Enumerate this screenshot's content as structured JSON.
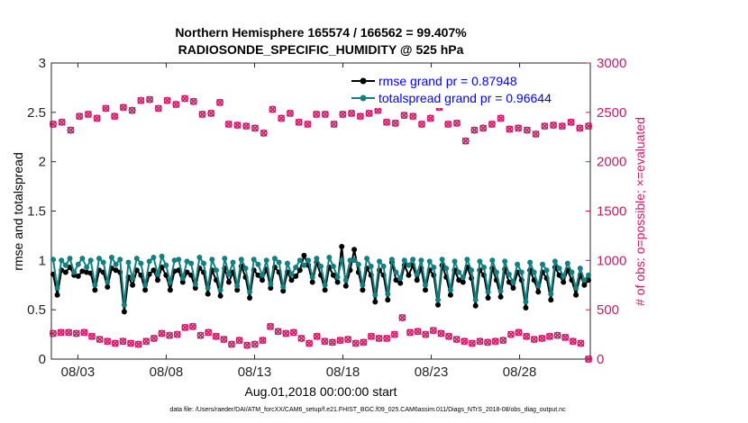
{
  "chart_data": {
    "type": "line",
    "title_line1": "Northern Hemisphere 165574 / 166562 = 99.407%",
    "title_line2": "RADIOSONDE_SPECIFIC_HUMIDITY @ 525 hPa",
    "xlabel": "Aug.01,2018 00:00:00 start",
    "ylabel_left": "rmse and totalspread",
    "ylabel_right": "# of obs: o=possible; ×=evaluated",
    "ylim_left": [
      0,
      3
    ],
    "ylim_right": [
      0,
      3000
    ],
    "xlim_days": [
      1.5,
      32.0
    ],
    "x_ticks": [
      {
        "day": 3,
        "label": "08/03"
      },
      {
        "day": 8,
        "label": "08/08"
      },
      {
        "day": 13,
        "label": "08/13"
      },
      {
        "day": 18,
        "label": "08/18"
      },
      {
        "day": 23,
        "label": "08/23"
      },
      {
        "day": 28,
        "label": "08/28"
      }
    ],
    "y_ticks_left": [
      "0",
      "0.5",
      "1",
      "1.5",
      "2",
      "2.5",
      "3"
    ],
    "y_ticks_right": [
      "0",
      "500",
      "1000",
      "1500",
      "2000",
      "2500",
      "3000"
    ],
    "legend": [
      {
        "name": "rmse grand pr = 0.87948",
        "color": "#000000"
      },
      {
        "name": "totalspread grand pr = 0.96644",
        "color": "#128080"
      }
    ],
    "series": [
      {
        "name": "rmse",
        "axis": "left",
        "color": "#000000",
        "values": [
          0.86,
          0.65,
          0.9,
          0.88,
          0.93,
          0.85,
          0.84,
          0.89,
          0.88,
          0.87,
          0.7,
          0.9,
          0.88,
          0.73,
          0.92,
          0.9,
          0.88,
          0.48,
          0.83,
          0.75,
          0.9,
          0.85,
          0.7,
          0.86,
          0.9,
          0.8,
          0.93,
          0.85,
          0.7,
          0.89,
          0.9,
          0.78,
          0.88,
          0.85,
          0.72,
          0.92,
          0.88,
          0.66,
          0.9,
          0.8,
          0.64,
          0.92,
          0.78,
          0.88,
          0.7,
          0.94,
          0.83,
          0.62,
          0.9,
          0.85,
          0.8,
          0.91,
          0.72,
          0.93,
          0.88,
          0.69,
          0.88,
          0.8,
          0.84,
          0.9,
          1.05,
          0.95,
          0.78,
          0.98,
          0.85,
          0.7,
          0.93,
          0.85,
          0.78,
          1.14,
          0.74,
          0.9,
          1.11,
          0.88,
          0.7,
          0.92,
          0.85,
          0.58,
          0.9,
          0.85,
          0.6,
          0.98,
          0.8,
          0.77,
          0.95,
          0.85,
          0.95,
          0.8,
          0.92,
          0.7,
          0.9,
          0.85,
          0.55,
          0.95,
          0.83,
          0.65,
          0.9,
          0.8,
          0.78,
          0.93,
          0.82,
          0.54,
          0.9,
          0.85,
          0.62,
          0.92,
          0.8,
          0.63,
          0.91,
          0.78,
          0.72,
          0.88,
          0.8,
          0.52,
          0.9,
          0.8,
          0.68,
          0.88,
          0.82,
          0.6,
          0.93,
          0.85,
          0.78,
          0.9,
          0.8,
          0.65,
          0.85,
          0.75,
          0.8
        ]
      },
      {
        "name": "totalspread",
        "axis": "left",
        "color": "#128080",
        "values": [
          1.01,
          0.72,
          1.0,
          0.95,
          1.02,
          0.88,
          0.96,
          1.02,
          0.93,
          1.0,
          0.75,
          1.02,
          0.98,
          0.78,
          1.03,
          0.96,
          1.01,
          0.55,
          0.98,
          0.82,
          1.02,
          0.97,
          0.75,
          0.99,
          1.03,
          0.86,
          1.04,
          0.95,
          0.78,
          1.0,
          1.01,
          0.82,
          0.99,
          0.97,
          0.76,
          1.03,
          0.97,
          0.72,
          1.01,
          0.9,
          0.7,
          1.02,
          0.86,
          0.98,
          0.74,
          1.01,
          0.92,
          0.68,
          1.01,
          0.96,
          0.85,
          1.0,
          0.76,
          1.02,
          0.98,
          0.73,
          0.97,
          0.86,
          0.93,
          1.0,
          0.95,
          1.0,
          0.83,
          1.02,
          0.94,
          0.75,
          1.03,
          0.94,
          0.83,
          1.0,
          0.8,
          1.0,
          1.0,
          0.96,
          0.75,
          1.02,
          0.94,
          0.65,
          0.99,
          0.94,
          0.66,
          1.01,
          0.88,
          0.82,
          1.0,
          0.95,
          1.01,
          0.86,
          1.0,
          0.75,
          0.99,
          0.93,
          0.6,
          1.01,
          0.92,
          0.7,
          0.99,
          0.88,
          0.83,
          1.01,
          0.9,
          0.6,
          0.99,
          0.93,
          0.68,
          1.0,
          0.88,
          0.69,
          0.99,
          0.86,
          0.78,
          0.96,
          0.88,
          0.58,
          0.98,
          0.88,
          0.74,
          0.96,
          0.9,
          0.66,
          0.99,
          0.92,
          0.84,
          0.97,
          0.88,
          0.72,
          0.92,
          0.8,
          0.85
        ]
      },
      {
        "name": "obs possible",
        "axis": "right",
        "color": "#cc1a66",
        "values": [
          2380,
          2400,
          2320,
          2460,
          2480,
          2440,
          2540,
          2460,
          2550,
          2520,
          2620,
          2630,
          2540,
          2620,
          2580,
          2640,
          2610,
          2480,
          2490,
          2600,
          2380,
          2370,
          2360,
          2340,
          2290,
          2530,
          2440,
          2490,
          2400,
          2380,
          2480,
          2480,
          2380,
          2480,
          2490,
          2460,
          2490,
          2520,
          2400,
          2390,
          2470,
          2460,
          2380,
          2440,
          2550,
          2380,
          2390,
          2210,
          2320,
          2340,
          2380,
          2440,
          2330,
          2340,
          2320,
          2280,
          2360,
          2370,
          2360,
          2400,
          2340,
          2360
        ]
      },
      {
        "name": "obs evaluated",
        "axis": "right",
        "color": "#cc1a66",
        "values": [
          260,
          270,
          270,
          260,
          270,
          230,
          200,
          180,
          160,
          180,
          160,
          150,
          180,
          210,
          260,
          240,
          250,
          320,
          330,
          240,
          270,
          230,
          200,
          150,
          190,
          140,
          150,
          190,
          330,
          280,
          260,
          270,
          210,
          160,
          230,
          180,
          170,
          190,
          200,
          160,
          170,
          230,
          210,
          210,
          250,
          420,
          270,
          280,
          250,
          290,
          260,
          230,
          200,
          180,
          160,
          180,
          170,
          180,
          190,
          250,
          270,
          230,
          200,
          210,
          230,
          240,
          220,
          180,
          160,
          0
        ]
      }
    ]
  },
  "footer": "data file: /Users/raeder/DAI/ATM_forcXX/CAM6_setup/f.e21.FHIST_BGC.f09_025.CAM6assim.011/Diags_NTrS_2018-08/obs_diag_output.nc"
}
